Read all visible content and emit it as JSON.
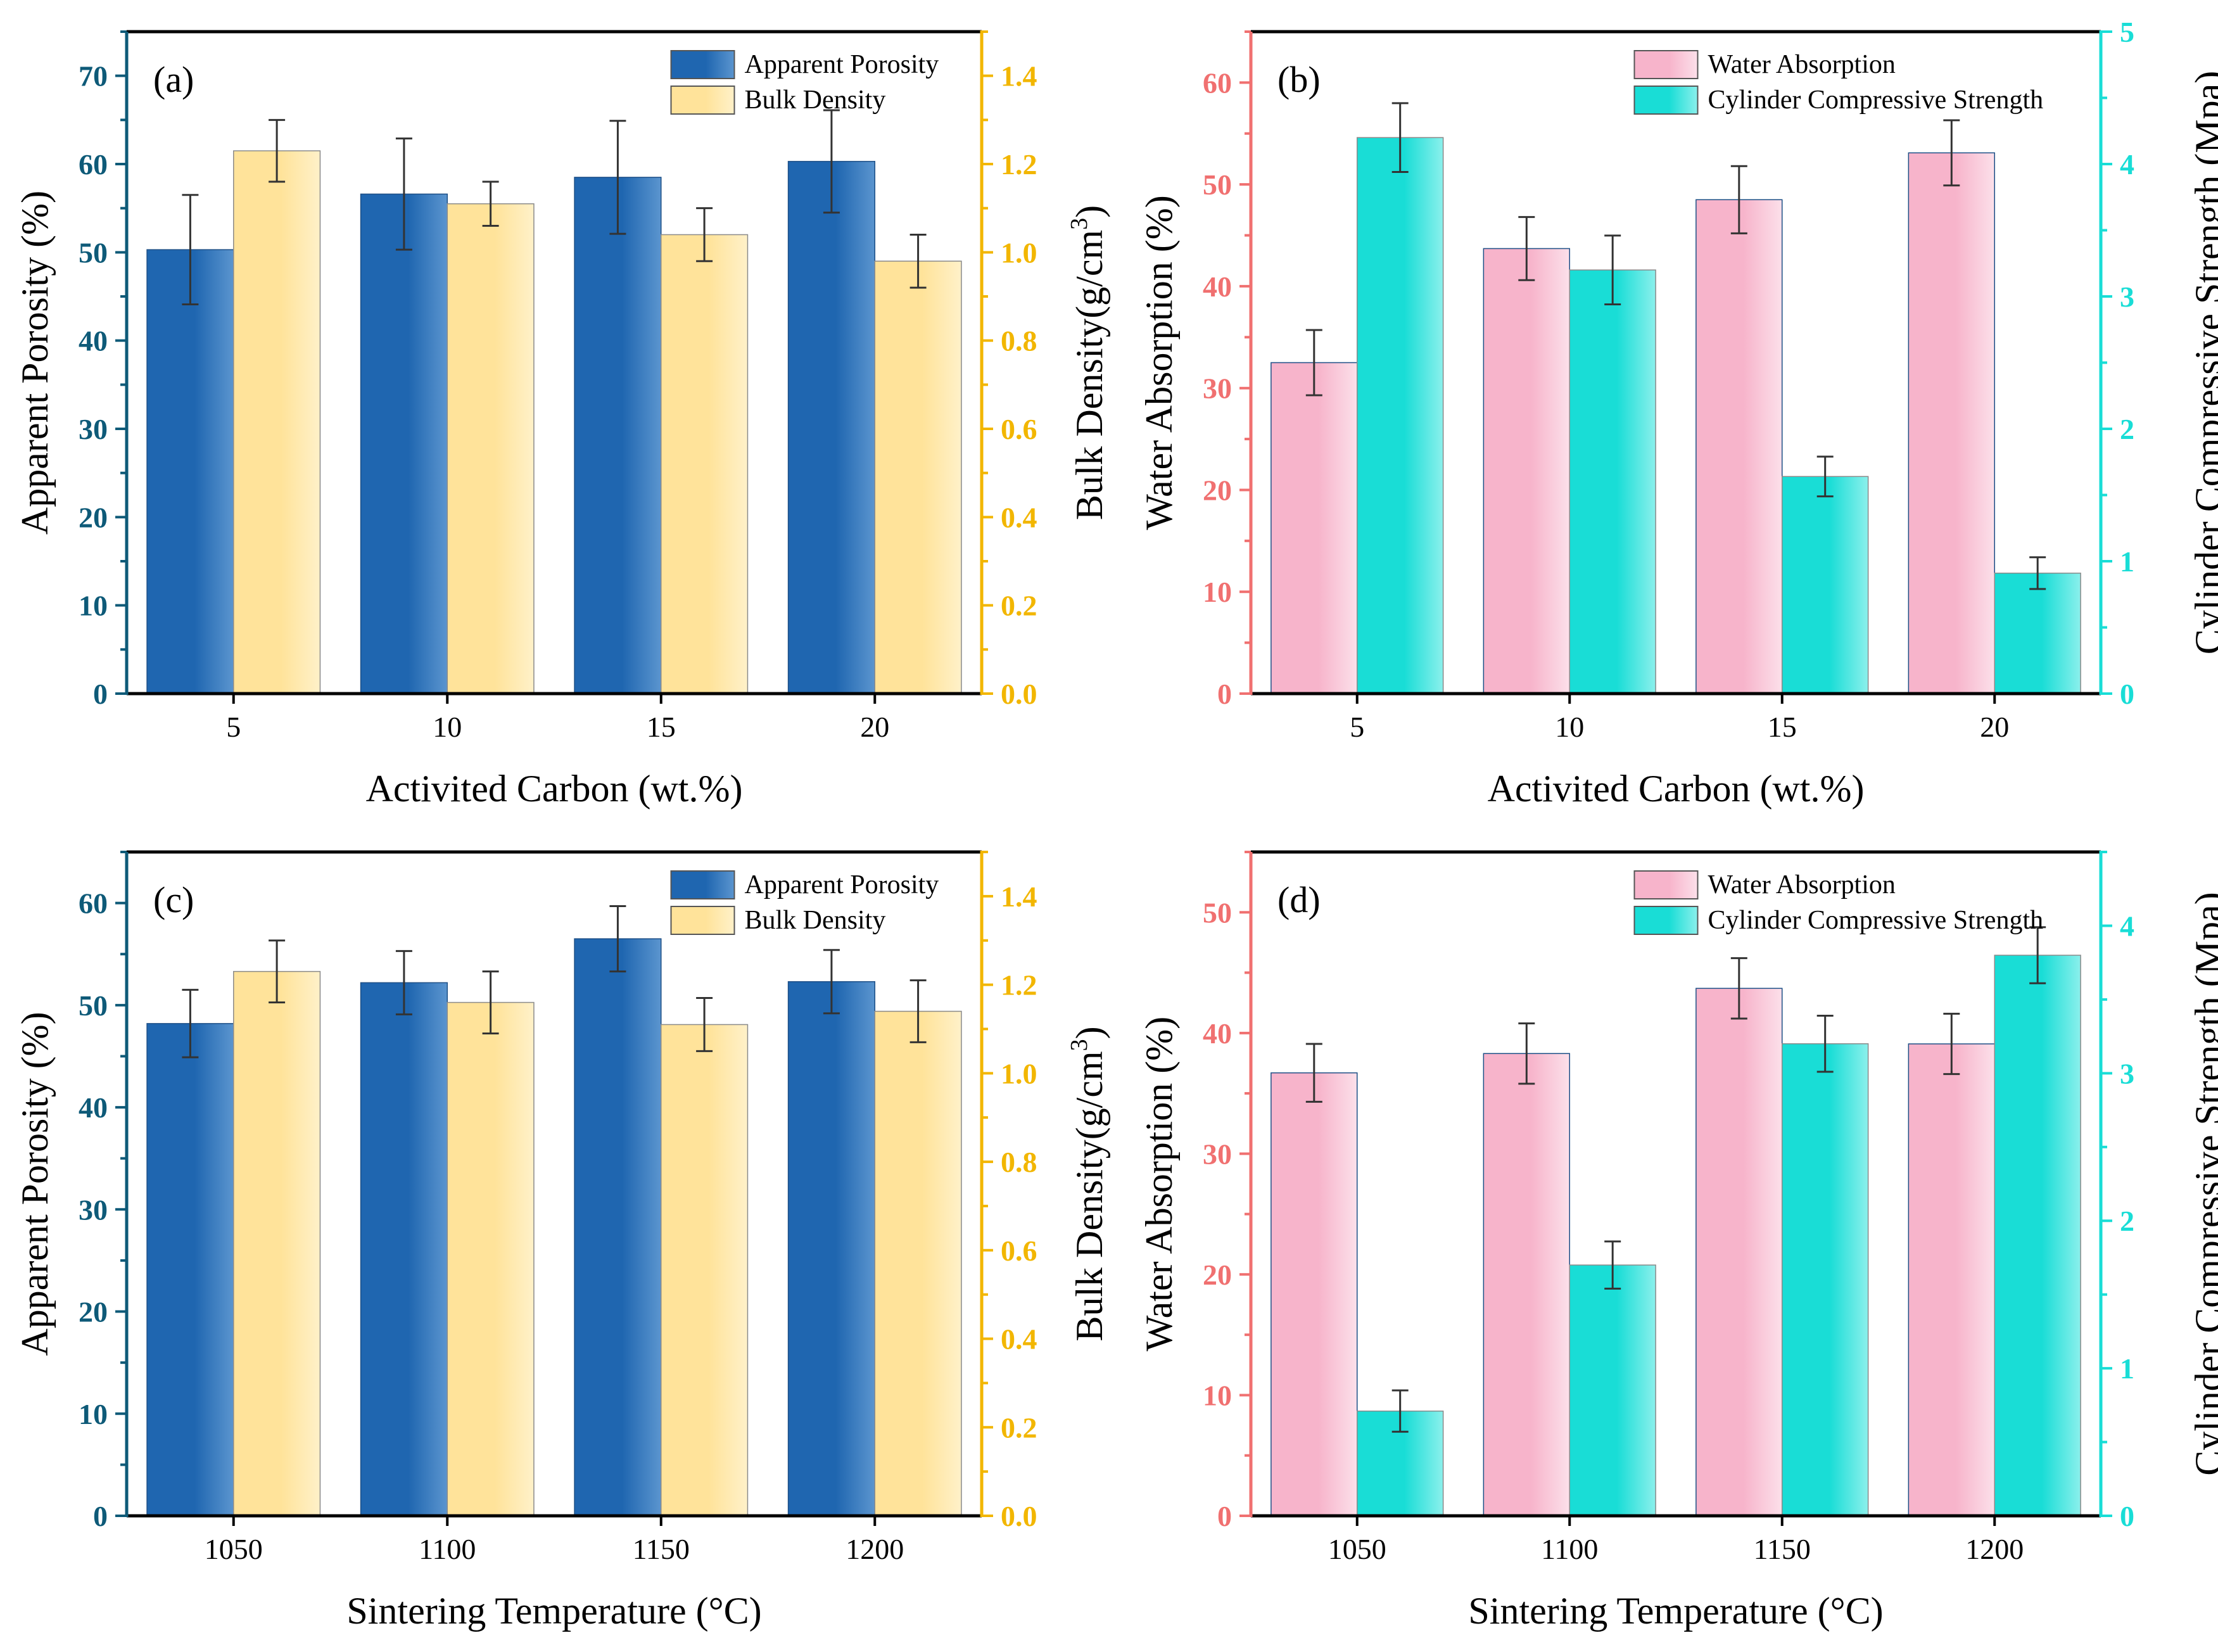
{
  "colors": {
    "apparent_porosity": "#1f66b0",
    "bulk_density": "#ffe39a",
    "water_absorption": "#f7b4cb",
    "compressive_strength": "#19ddd6",
    "axis_blue": "#0e5a78",
    "axis_orange": "#f2b600",
    "axis_red": "#f07070",
    "axis_cyan": "#19ddd6"
  },
  "chart_data": [
    {
      "id": "a",
      "type": "bar",
      "panel_label": "(a)",
      "xlabel": "Activited Carbon (wt.%)",
      "categories": [
        "5",
        "10",
        "15",
        "20"
      ],
      "y_left": {
        "label": "Apparent Porosity (%)",
        "lim": [
          0,
          75
        ],
        "ticks": [
          0,
          10,
          20,
          30,
          40,
          50,
          60,
          70
        ]
      },
      "y_right": {
        "label": "Bulk Density(g/cm",
        "label_sup": "3",
        "label_end": ")",
        "lim": [
          0,
          1.5
        ],
        "ticks": [
          0.0,
          0.2,
          0.4,
          0.6,
          0.8,
          1.0,
          1.2,
          1.4
        ],
        "tick_labels": [
          "0.0",
          "0.2",
          "0.4",
          "0.6",
          "0.8",
          "1.0",
          "1.2",
          "1.4"
        ]
      },
      "legend": [
        "Apparent Porosity",
        "Bulk Density"
      ],
      "series": [
        {
          "name": "Apparent Porosity",
          "axis": "left",
          "values": [
            50.3,
            56.6,
            58.5,
            60.3
          ],
          "errors": [
            6.2,
            6.3,
            6.4,
            5.8
          ]
        },
        {
          "name": "Bulk Density",
          "axis": "right",
          "values": [
            1.23,
            1.11,
            1.04,
            0.98
          ],
          "errors": [
            0.07,
            0.05,
            0.06,
            0.06
          ]
        }
      ]
    },
    {
      "id": "b",
      "type": "bar",
      "panel_label": "(b)",
      "xlabel": "Activited Carbon (wt.%)",
      "categories": [
        "5",
        "10",
        "15",
        "20"
      ],
      "y_left": {
        "label": "Water Absorption (%)",
        "lim": [
          0,
          65
        ],
        "ticks": [
          0,
          10,
          20,
          30,
          40,
          50,
          60
        ]
      },
      "y_right": {
        "label": "Cylinder Compressive Strength (Mpa)",
        "lim": [
          0,
          5
        ],
        "ticks": [
          0,
          1,
          2,
          3,
          4,
          5
        ],
        "tick_labels": [
          "0",
          "1",
          "2",
          "3",
          "4",
          "5"
        ]
      },
      "legend": [
        "Water Absorption",
        "Cylinder Compressive Strength"
      ],
      "series": [
        {
          "name": "Water Absorption",
          "axis": "left",
          "values": [
            32.5,
            43.7,
            48.5,
            53.1
          ],
          "errors": [
            3.2,
            3.1,
            3.3,
            3.2
          ]
        },
        {
          "name": "Cylinder Compressive Strength",
          "axis": "right",
          "values": [
            4.2,
            3.2,
            1.64,
            0.91
          ],
          "errors": [
            0.26,
            0.26,
            0.15,
            0.12
          ]
        }
      ]
    },
    {
      "id": "c",
      "type": "bar",
      "panel_label": "(c)",
      "xlabel": "Sintering Temperature (°C)",
      "categories": [
        "1050",
        "1100",
        "1150",
        "1200"
      ],
      "y_left": {
        "label": "Apparent Porosity (%)",
        "lim": [
          0,
          65
        ],
        "ticks": [
          0,
          10,
          20,
          30,
          40,
          50,
          60
        ]
      },
      "y_right": {
        "label": "Bulk Density(g/cm",
        "label_sup": "3",
        "label_end": ")",
        "lim": [
          0,
          1.5
        ],
        "ticks": [
          0.0,
          0.2,
          0.4,
          0.6,
          0.8,
          1.0,
          1.2,
          1.4
        ],
        "tick_labels": [
          "0.0",
          "0.2",
          "0.4",
          "0.6",
          "0.8",
          "1.0",
          "1.2",
          "1.4"
        ]
      },
      "legend": [
        "Apparent Porosity",
        "Bulk Density"
      ],
      "series": [
        {
          "name": "Apparent Porosity",
          "axis": "left",
          "values": [
            48.2,
            52.2,
            56.5,
            52.3
          ],
          "errors": [
            3.3,
            3.1,
            3.2,
            3.1
          ]
        },
        {
          "name": "Bulk Density",
          "axis": "right",
          "values": [
            1.23,
            1.16,
            1.11,
            1.14
          ],
          "errors": [
            0.07,
            0.07,
            0.06,
            0.07
          ]
        }
      ]
    },
    {
      "id": "d",
      "type": "bar",
      "panel_label": "(d)",
      "xlabel": "Sintering Temperature (°C)",
      "categories": [
        "1050",
        "1100",
        "1150",
        "1200"
      ],
      "y_left": {
        "label": "Water Absorption (%)",
        "lim": [
          0,
          55
        ],
        "ticks": [
          0,
          10,
          20,
          30,
          40,
          50
        ]
      },
      "y_right": {
        "label": "Cylinder Compressive Strength (Mpa)",
        "lim": [
          0,
          4.5
        ],
        "ticks": [
          0,
          1,
          2,
          3,
          4
        ],
        "tick_labels": [
          "0",
          "1",
          "2",
          "3",
          "4"
        ]
      },
      "legend": [
        "Water Absorption",
        "Cylinder Compressive Strength"
      ],
      "series": [
        {
          "name": "Water Absorption",
          "axis": "left",
          "values": [
            36.7,
            38.3,
            43.7,
            39.1
          ],
          "errors": [
            2.4,
            2.5,
            2.5,
            2.5
          ]
        },
        {
          "name": "Cylinder Compressive Strength",
          "axis": "right",
          "values": [
            0.71,
            1.7,
            3.2,
            3.8
          ],
          "errors": [
            0.14,
            0.16,
            0.19,
            0.19
          ]
        }
      ]
    }
  ]
}
